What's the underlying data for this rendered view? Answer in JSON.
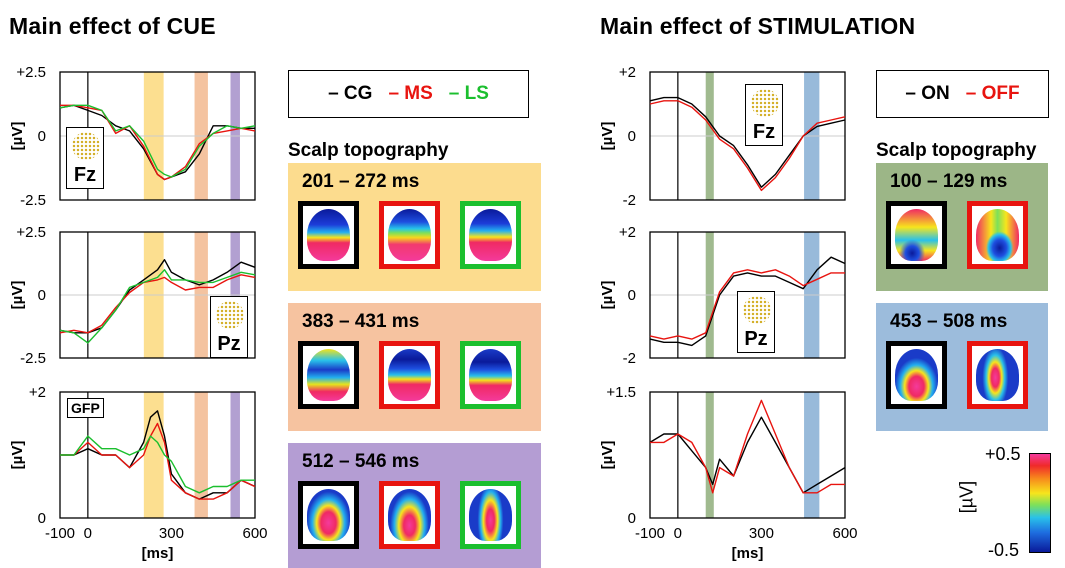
{
  "titles": {
    "left": "Main effect of CUE",
    "right": "Main effect of STIMULATION"
  },
  "colors": {
    "CG": "#000000",
    "MS": "#e8140f",
    "LS": "#1bbf2e",
    "ON": "#000000",
    "OFF": "#e8140f",
    "cue_band_1": "#fbd97d",
    "cue_band_2": "#f2b88f",
    "cue_band_3": "#a58fc9",
    "stim_band_1": "#8fae7b",
    "stim_band_2": "#86aed4",
    "topo_bg_1": "#fcdc8e",
    "topo_bg_2": "#f6c3a0",
    "topo_bg_3": "#b49dd3",
    "topo_bg_4": "#9cb687",
    "topo_bg_5": "#9cbcdc"
  },
  "legends": {
    "cue": [
      {
        "dash": "–",
        "label": "CG",
        "color": "#000000"
      },
      {
        "dash": "–",
        "label": "MS",
        "color": "#e8140f"
      },
      {
        "dash": "–",
        "label": "LS",
        "color": "#1bbf2e"
      }
    ],
    "stim": [
      {
        "dash": "–",
        "label": "ON",
        "color": "#000000"
      },
      {
        "dash": "–",
        "label": "OFF",
        "color": "#e8140f"
      }
    ]
  },
  "scalp": {
    "title": "Scalp topography",
    "cue_windows": [
      "201 – 272 ms",
      "383 – 431 ms",
      "512 – 546 ms"
    ],
    "stim_windows": [
      "100 – 129 ms",
      "453 – 508 ms"
    ]
  },
  "electrodes": {
    "fz": "Fz",
    "pz": "Pz",
    "gfp": "GFP"
  },
  "colorbar": {
    "max": "+0.5",
    "min": "-0.5",
    "unit": "[µV]"
  },
  "chart_data": [
    {
      "type": "line",
      "panel": "CUE-Fz",
      "ylabel": "[µV]",
      "ylim": [
        -2.5,
        2.5
      ],
      "ytick_labels": [
        "+2.5",
        "0",
        "-2.5"
      ],
      "xlim": [
        -100,
        600
      ],
      "bands_ms": [
        [
          201,
          272
        ],
        [
          383,
          431
        ],
        [
          512,
          546
        ]
      ],
      "x": [
        -100,
        -50,
        0,
        50,
        100,
        150,
        200,
        250,
        275,
        300,
        350,
        400,
        450,
        500,
        550,
        600
      ],
      "series": [
        {
          "name": "CG",
          "values": [
            1.1,
            1.2,
            1.0,
            0.8,
            0.4,
            0.2,
            -0.5,
            -1.5,
            -1.7,
            -1.6,
            -1.4,
            -0.7,
            0.4,
            0.4,
            0.3,
            0.3
          ]
        },
        {
          "name": "MS",
          "values": [
            1.2,
            1.2,
            1.1,
            1.0,
            0.1,
            0.4,
            -0.4,
            -1.5,
            -1.7,
            -1.6,
            -1.2,
            -0.3,
            0.1,
            0.2,
            0.3,
            0.2
          ]
        },
        {
          "name": "LS",
          "values": [
            1.1,
            1.2,
            1.2,
            1.0,
            0.2,
            0.4,
            -0.2,
            -1.3,
            -1.5,
            -1.6,
            -1.3,
            -0.4,
            0.1,
            0.4,
            0.3,
            0.4
          ]
        }
      ]
    },
    {
      "type": "line",
      "panel": "CUE-Pz",
      "ylabel": "[µV]",
      "ylim": [
        -2.5,
        2.5
      ],
      "ytick_labels": [
        "+2.5",
        "0",
        "-2.5"
      ],
      "xlim": [
        -100,
        600
      ],
      "bands_ms": [
        [
          201,
          272
        ],
        [
          383,
          431
        ],
        [
          512,
          546
        ]
      ],
      "x": [
        -100,
        -50,
        0,
        50,
        100,
        150,
        200,
        250,
        275,
        300,
        350,
        400,
        450,
        500,
        550,
        600
      ],
      "series": [
        {
          "name": "CG",
          "values": [
            -1.4,
            -1.5,
            -1.5,
            -1.3,
            -0.6,
            0.2,
            0.6,
            1.0,
            1.4,
            0.9,
            0.6,
            0.4,
            0.6,
            0.9,
            1.3,
            1.1
          ]
        },
        {
          "name": "MS",
          "values": [
            -1.5,
            -1.4,
            -1.5,
            -1.2,
            -0.5,
            0.1,
            0.5,
            0.6,
            0.7,
            0.5,
            0.2,
            0.3,
            0.3,
            0.6,
            0.8,
            0.7
          ]
        },
        {
          "name": "LS",
          "values": [
            -1.4,
            -1.5,
            -1.9,
            -1.3,
            -0.6,
            0.3,
            0.5,
            0.7,
            1.0,
            0.6,
            0.6,
            0.5,
            0.5,
            0.7,
            0.9,
            0.8
          ]
        }
      ]
    },
    {
      "type": "line",
      "panel": "CUE-GFP",
      "ylabel": "[µV]",
      "ylim": [
        0,
        2
      ],
      "ytick_labels": [
        "+2",
        "0"
      ],
      "xlim": [
        -100,
        600
      ],
      "xtick_labels": [
        "-100",
        "0",
        "300",
        "600"
      ],
      "xlabel": "[ms]",
      "bands_ms": [
        [
          201,
          272
        ],
        [
          383,
          431
        ],
        [
          512,
          546
        ]
      ],
      "x": [
        -100,
        -50,
        0,
        50,
        100,
        150,
        200,
        225,
        250,
        275,
        300,
        350,
        400,
        450,
        500,
        550,
        600
      ],
      "series": [
        {
          "name": "CG",
          "values": [
            1.0,
            1.0,
            1.1,
            1.0,
            1.0,
            0.8,
            1.2,
            1.6,
            1.7,
            1.3,
            0.7,
            0.4,
            0.3,
            0.4,
            0.4,
            0.6,
            0.5
          ]
        },
        {
          "name": "MS",
          "values": [
            1.0,
            1.0,
            1.2,
            1.0,
            1.0,
            0.8,
            1.0,
            1.3,
            1.5,
            1.2,
            0.6,
            0.4,
            0.3,
            0.3,
            0.4,
            0.6,
            0.5
          ]
        },
        {
          "name": "LS",
          "values": [
            1.0,
            1.0,
            1.3,
            1.1,
            1.1,
            1.0,
            1.1,
            1.3,
            1.2,
            1.0,
            0.9,
            0.5,
            0.4,
            0.5,
            0.5,
            0.6,
            0.6
          ]
        }
      ]
    },
    {
      "type": "line",
      "panel": "STIM-Fz",
      "ylabel": "[µV]",
      "ylim": [
        -2,
        2
      ],
      "ytick_labels": [
        "+2",
        "0",
        "-2"
      ],
      "xlim": [
        -100,
        600
      ],
      "bands_ms": [
        [
          100,
          129
        ],
        [
          453,
          508
        ]
      ],
      "x": [
        -100,
        -50,
        0,
        50,
        100,
        150,
        200,
        250,
        300,
        350,
        400,
        450,
        500,
        550,
        600
      ],
      "series": [
        {
          "name": "ON",
          "values": [
            1.1,
            1.2,
            1.2,
            1.0,
            0.6,
            0.0,
            -0.3,
            -0.9,
            -1.6,
            -1.2,
            -0.6,
            0.0,
            0.3,
            0.4,
            0.5
          ]
        },
        {
          "name": "OFF",
          "values": [
            1.0,
            1.1,
            1.1,
            0.9,
            0.5,
            -0.1,
            -0.4,
            -1.0,
            -1.7,
            -1.3,
            -0.7,
            0.0,
            0.4,
            0.5,
            0.6
          ]
        }
      ]
    },
    {
      "type": "line",
      "panel": "STIM-Pz",
      "ylabel": "[µV]",
      "ylim": [
        -2,
        2
      ],
      "ytick_labels": [
        "+2",
        "0",
        "-2"
      ],
      "xlim": [
        -100,
        600
      ],
      "bands_ms": [
        [
          100,
          129
        ],
        [
          453,
          508
        ]
      ],
      "x": [
        -100,
        -50,
        0,
        50,
        100,
        150,
        200,
        250,
        300,
        350,
        400,
        450,
        500,
        550,
        600
      ],
      "series": [
        {
          "name": "ON",
          "values": [
            -1.4,
            -1.5,
            -1.5,
            -1.6,
            -1.3,
            0.0,
            0.6,
            0.7,
            0.6,
            0.6,
            0.4,
            0.2,
            0.8,
            1.2,
            1.0
          ]
        },
        {
          "name": "OFF",
          "values": [
            -1.3,
            -1.4,
            -1.3,
            -1.4,
            -1.2,
            0.1,
            0.7,
            0.8,
            0.7,
            0.8,
            0.6,
            0.3,
            0.5,
            0.7,
            0.7
          ]
        }
      ]
    },
    {
      "type": "line",
      "panel": "STIM-GFP",
      "ylabel": "[µV]",
      "ylim": [
        0,
        1.5
      ],
      "ytick_labels": [
        "+1.5",
        "0"
      ],
      "xlim": [
        -100,
        600
      ],
      "xtick_labels": [
        "-100",
        "0",
        "300",
        "600"
      ],
      "xlabel": "[ms]",
      "bands_ms": [
        [
          100,
          129
        ],
        [
          453,
          508
        ]
      ],
      "x": [
        -100,
        -50,
        0,
        50,
        100,
        125,
        150,
        200,
        250,
        300,
        350,
        400,
        450,
        500,
        550,
        600
      ],
      "series": [
        {
          "name": "ON",
          "values": [
            0.9,
            1.0,
            1.0,
            0.8,
            0.6,
            0.4,
            0.7,
            0.5,
            0.9,
            1.2,
            0.9,
            0.6,
            0.3,
            0.4,
            0.5,
            0.6
          ]
        },
        {
          "name": "OFF",
          "values": [
            0.9,
            0.9,
            1.0,
            0.9,
            0.6,
            0.3,
            0.6,
            0.5,
            1.0,
            1.4,
            1.0,
            0.6,
            0.3,
            0.3,
            0.4,
            0.4
          ]
        }
      ]
    }
  ]
}
